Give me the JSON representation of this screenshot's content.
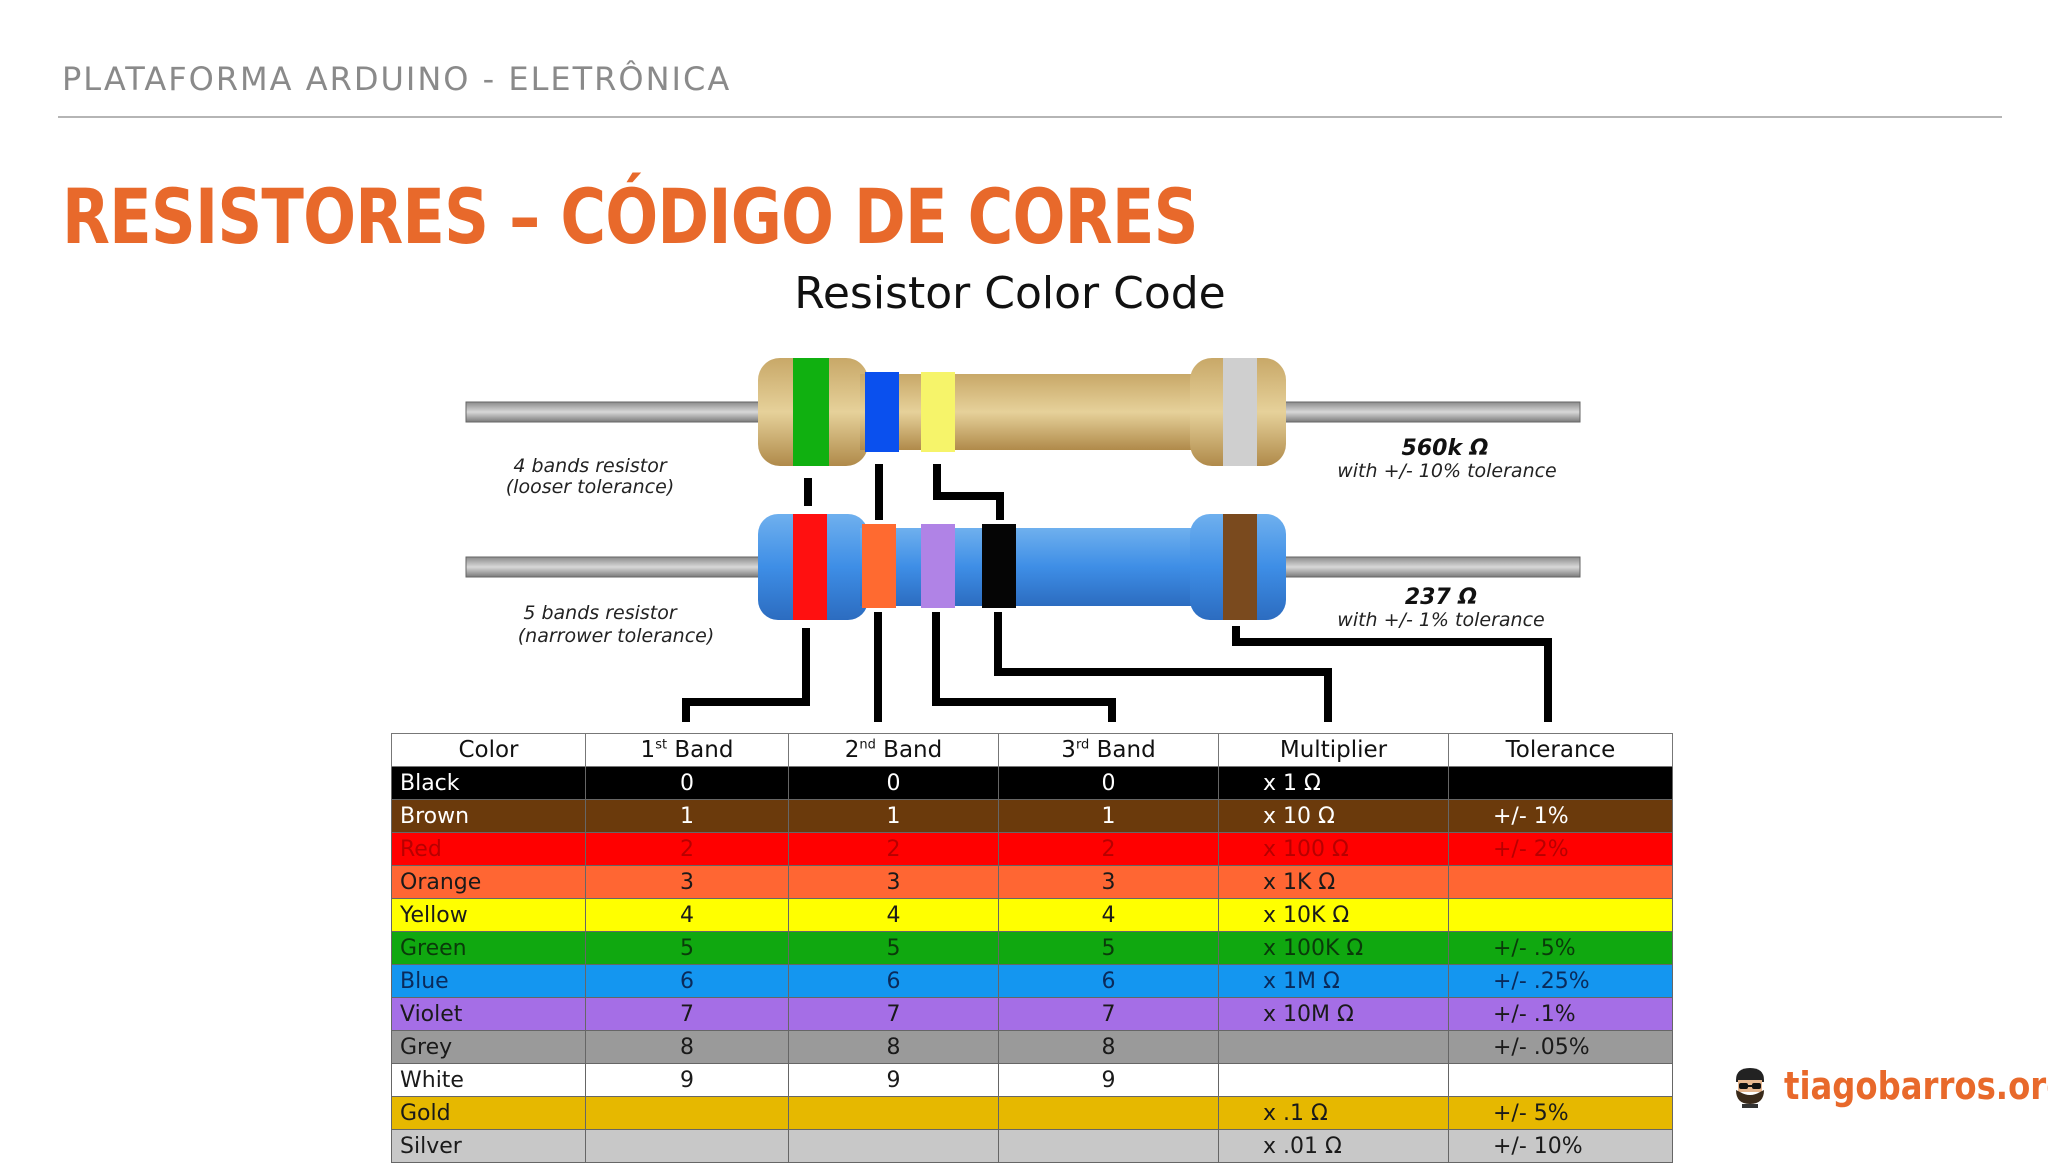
{
  "header": {
    "section": "PLATAFORMA ARDUINO - ELETRÔNICA"
  },
  "slide": {
    "title": "RESISTORES – CÓDIGO DE CORES"
  },
  "diagram": {
    "title": "Resistor Color Code",
    "four_band": {
      "label_line1": "4 bands resistor",
      "label_line2": "(looser tolerance)",
      "value": "560k Ω",
      "tolerance": "with +/- 10% tolerance",
      "band_colors": [
        "#10b010",
        "#0a50ee",
        "#f6f46a",
        "#cfcfcf"
      ]
    },
    "five_band": {
      "label_line1": "5 bands resistor",
      "label_line2": "(narrower tolerance)",
      "value": "237 Ω",
      "tolerance": "with +/- 1% tolerance",
      "band_colors": [
        "#ff1010",
        "#ff6a30",
        "#b083e6",
        "#050505",
        "#7a4a1e"
      ]
    }
  },
  "table": {
    "headers": [
      {
        "main": "Color",
        "sup": "",
        "rest": ""
      },
      {
        "main": "1",
        "sup": "st",
        "rest": " Band"
      },
      {
        "main": "2",
        "sup": "nd",
        "rest": " Band"
      },
      {
        "main": "3",
        "sup": "rd",
        "rest": " Band"
      },
      {
        "main": "Multiplier",
        "sup": "",
        "rest": ""
      },
      {
        "main": "Tolerance",
        "sup": "",
        "rest": ""
      }
    ],
    "rows": [
      {
        "color": "Black",
        "b1": "0",
        "b2": "0",
        "b3": "0",
        "mult": "x 1 Ω",
        "tol": "",
        "bg": "#000000",
        "fg": "#ffffff"
      },
      {
        "color": "Brown",
        "b1": "1",
        "b2": "1",
        "b3": "1",
        "mult": "x 10 Ω",
        "tol": "+/-  1%",
        "bg": "#6b3a0c",
        "fg": "#ffffff"
      },
      {
        "color": "Red",
        "b1": "2",
        "b2": "2",
        "b3": "2",
        "mult": "x 100 Ω",
        "tol": "+/-  2%",
        "bg": "#ff0000",
        "fg": "#b80000"
      },
      {
        "color": "Orange",
        "b1": "3",
        "b2": "3",
        "b3": "3",
        "mult": "x 1K Ω",
        "tol": "",
        "bg": "#ff6633",
        "fg": "#1a1a1a"
      },
      {
        "color": "Yellow",
        "b1": "4",
        "b2": "4",
        "b3": "4",
        "mult": "x 10K Ω",
        "tol": "",
        "bg": "#ffff00",
        "fg": "#1a1a1a"
      },
      {
        "color": "Green",
        "b1": "5",
        "b2": "5",
        "b3": "5",
        "mult": "x 100K Ω",
        "tol": "+/-  .5%",
        "bg": "#10a810",
        "fg": "#0a3a0a"
      },
      {
        "color": "Blue",
        "b1": "6",
        "b2": "6",
        "b3": "6",
        "mult": "x 1M Ω",
        "tol": "+/-  .25%",
        "bg": "#1496f0",
        "fg": "#0a2a5a"
      },
      {
        "color": "Violet",
        "b1": "7",
        "b2": "7",
        "b3": "7",
        "mult": "x 10M Ω",
        "tol": "+/-  .1%",
        "bg": "#a56ee6",
        "fg": "#1a1a1a"
      },
      {
        "color": "Grey",
        "b1": "8",
        "b2": "8",
        "b3": "8",
        "mult": "",
        "tol": "+/-  .05%",
        "bg": "#9a9a9a",
        "fg": "#1a1a1a"
      },
      {
        "color": "White",
        "b1": "9",
        "b2": "9",
        "b3": "9",
        "mult": "",
        "tol": "",
        "bg": "#ffffff",
        "fg": "#1a1a1a"
      },
      {
        "color": "Gold",
        "b1": "",
        "b2": "",
        "b3": "",
        "mult": "x .1 Ω",
        "tol": "+/-  5%",
        "bg": "#e6b800",
        "fg": "#1a1a1a"
      },
      {
        "color": "Silver",
        "b1": "",
        "b2": "",
        "b3": "",
        "mult": "x .01 Ω",
        "tol": "+/-  10%",
        "bg": "#c8c8c8",
        "fg": "#1a1a1a"
      }
    ]
  },
  "footer": {
    "site": "tiagobarros.org",
    "logo_icon": "bearded-avatar-icon"
  }
}
